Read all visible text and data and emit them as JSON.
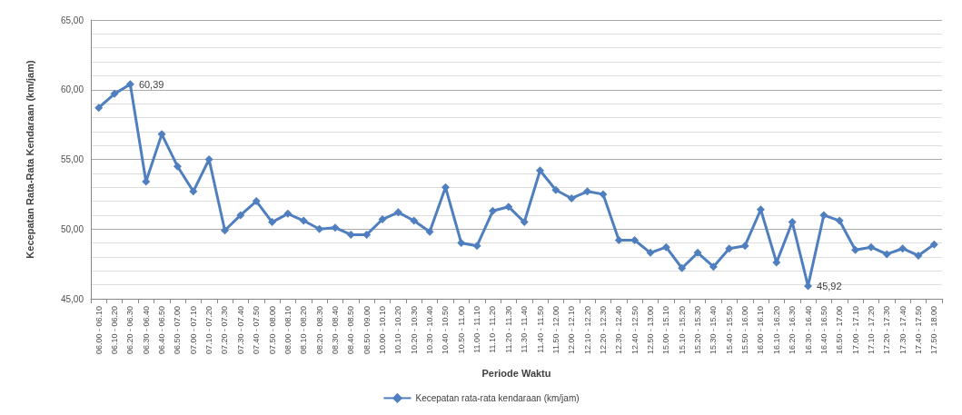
{
  "chart_data": {
    "type": "line",
    "xlabel": "Periode Waktu",
    "ylabel": "Kecepatan Rata-Rata Kendaraan (km/jam)",
    "categories": [
      "06.00 - 06.10",
      "06.10 - 06.20",
      "06.20 - 06.30",
      "06.30 - 06.40",
      "06.40 - 06.50",
      "06.50 - 07.00",
      "07.00 - 07.10",
      "07.10 - 07.20",
      "07.20 - 07.30",
      "07.30 - 07.40",
      "07.40 - 07.50",
      "07.50 - 08.00",
      "08.00 - 08.10",
      "08.10 - 08.20",
      "08.20 - 08.30",
      "08.30 - 08.40",
      "08.40 - 08.50",
      "08.50 - 09.00",
      "10.00 - 10.10",
      "10.10 - 10.20",
      "10.20 - 10.30",
      "10.30 - 10.40",
      "10.40 - 10.50",
      "10.50 - 11.00",
      "11.00 - 11.10",
      "11.10 - 11.20",
      "11.20 - 11.30",
      "11.30 - 11.40",
      "11.40 - 11.50",
      "11.50 - 12.00",
      "12.00 - 12.10",
      "12.10 - 12.20",
      "12.20 - 12.30",
      "12.30 - 12.40",
      "12.40 - 12.50",
      "12.50 - 13.00",
      "15.00 - 15.10",
      "15.10 - 15.20",
      "15.20 - 15.30",
      "15.30 - 15.40",
      "15.40 - 15.50",
      "15.50 - 16.00",
      "16.00 - 16.10",
      "16.10 - 16.20",
      "16.20 - 16.30",
      "16.30 - 16.40",
      "16.40 - 16.50",
      "16.50 - 17.00",
      "17.00 - 17.10",
      "17.10 - 17.20",
      "17.20 - 17.30",
      "17.30 - 17.40",
      "17.40 - 17.50",
      "17.50 - 18.00"
    ],
    "series": [
      {
        "name": "Kecepatan rata-rata kendaraan (km/jam)",
        "color": "#4f7fbf",
        "values": [
          58.7,
          59.7,
          60.39,
          53.4,
          56.8,
          54.5,
          52.7,
          55.0,
          49.9,
          51.0,
          52.0,
          50.5,
          51.1,
          50.6,
          50.0,
          50.1,
          49.6,
          49.6,
          50.7,
          51.2,
          50.6,
          49.8,
          53.0,
          49.0,
          48.8,
          51.3,
          51.6,
          50.5,
          54.2,
          52.8,
          52.2,
          52.7,
          52.5,
          49.2,
          49.2,
          48.3,
          48.7,
          47.2,
          48.3,
          47.3,
          48.6,
          48.8,
          51.4,
          47.6,
          50.5,
          45.92,
          51.0,
          50.6,
          48.5,
          48.7,
          48.2,
          48.6,
          48.1,
          48.9
        ],
        "value_labels": [
          null,
          null,
          "60,39",
          null,
          null,
          null,
          null,
          null,
          null,
          null,
          null,
          null,
          null,
          null,
          null,
          null,
          null,
          null,
          null,
          null,
          null,
          null,
          null,
          null,
          null,
          null,
          null,
          null,
          null,
          null,
          null,
          null,
          null,
          null,
          null,
          null,
          null,
          null,
          null,
          null,
          null,
          null,
          null,
          null,
          null,
          "45,92",
          null,
          null,
          null,
          null,
          null,
          null,
          null,
          null
        ]
      }
    ],
    "ylim": [
      45,
      65
    ],
    "yticks": [
      {
        "value": 45,
        "label": "45,00"
      },
      {
        "value": 50,
        "label": "50,00"
      },
      {
        "value": 55,
        "label": "55,00"
      },
      {
        "value": 60,
        "label": "60,00"
      },
      {
        "value": 65,
        "label": "65,00"
      }
    ],
    "grid": "y",
    "legend": "bottom",
    "marker": "diamond",
    "line_style": "solid"
  }
}
